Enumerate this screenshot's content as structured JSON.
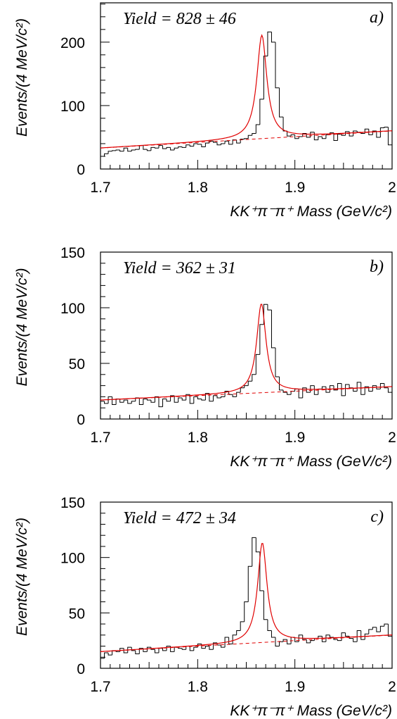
{
  "chart_data": [
    {
      "type": "histogram",
      "panel_label": "a)",
      "annotation": "Yield = 828 ± 46",
      "xlabel": "KK⁺π⁻π⁺ Mass  (GeV/c²)",
      "ylabel": "Events/(4 MeV/c²)",
      "xlim": [
        1.7,
        2.0
      ],
      "ylim": [
        0,
        262
      ],
      "xticks": [
        "1.7",
        "1.8",
        "1.9",
        "2"
      ],
      "yticks": [
        "0",
        "100",
        "200"
      ],
      "ytick_values": [
        0,
        100,
        200
      ],
      "bin_width": 0.004,
      "x_start": 1.7,
      "values": [
        20,
        24,
        28,
        29,
        30,
        28,
        33,
        28,
        30,
        31,
        37,
        31,
        29,
        34,
        33,
        37,
        32,
        34,
        30,
        33,
        35,
        34,
        38,
        36,
        40,
        39,
        35,
        41,
        44,
        42,
        38,
        40,
        44,
        39,
        46,
        41,
        47,
        48,
        53,
        56,
        70,
        110,
        178,
        216,
        200,
        128,
        82,
        60,
        52,
        54,
        48,
        51,
        56,
        50,
        58,
        46,
        51,
        48,
        54,
        57,
        45,
        55,
        53,
        59,
        52,
        60,
        58,
        56,
        63,
        54,
        60,
        50,
        65,
        66,
        38
      ],
      "fit": {
        "peak_mean": 1.866,
        "peak_amplitude": 163,
        "peak_width": 0.0062,
        "background": [
          33,
          60
        ]
      }
    },
    {
      "type": "histogram",
      "panel_label": "b)",
      "annotation": "Yield = 362 ± 31",
      "xlabel": "KK⁺π⁻π⁺ Mass  (GeV/c²)",
      "ylabel": "Events/(4 MeV/c²)",
      "xlim": [
        1.7,
        2.0
      ],
      "ylim": [
        0,
        150
      ],
      "xticks": [
        "1.7",
        "1.8",
        "1.9",
        "2"
      ],
      "yticks": [
        "0",
        "50",
        "100",
        "150"
      ],
      "ytick_values": [
        0,
        50,
        100,
        150
      ],
      "bin_width": 0.004,
      "x_start": 1.7,
      "values": [
        16,
        14,
        20,
        13,
        18,
        15,
        17,
        14,
        16,
        19,
        13,
        18,
        17,
        15,
        20,
        11,
        18,
        16,
        21,
        15,
        19,
        17,
        22,
        14,
        20,
        18,
        17,
        23,
        16,
        21,
        19,
        20,
        25,
        22,
        20,
        24,
        28,
        30,
        34,
        40,
        58,
        85,
        103,
        98,
        64,
        38,
        26,
        24,
        22,
        25,
        27,
        19,
        28,
        24,
        30,
        22,
        27,
        29,
        24,
        30,
        26,
        32,
        21,
        31,
        28,
        25,
        33,
        22,
        29,
        25,
        30,
        27,
        32,
        28,
        24
      ],
      "fit": {
        "peak_mean": 1.8655,
        "peak_amplitude": 80,
        "peak_width": 0.0058,
        "background": [
          17,
          29
        ]
      }
    },
    {
      "type": "histogram",
      "panel_label": "c)",
      "annotation": "Yield = 472 ± 34",
      "xlabel": "KK⁺π⁻π⁺ Mass  (GeV/c²)",
      "ylabel": "Events/(4 MeV/c²)",
      "xlim": [
        1.7,
        2.0
      ],
      "ylim": [
        0,
        150
      ],
      "xticks": [
        "1.7",
        "1.8",
        "1.9",
        "2"
      ],
      "yticks": [
        "0",
        "50",
        "100",
        "150"
      ],
      "ytick_values": [
        0,
        50,
        100,
        150
      ],
      "bin_width": 0.004,
      "x_start": 1.7,
      "values": [
        9,
        14,
        12,
        16,
        15,
        18,
        14,
        19,
        16,
        13,
        18,
        15,
        19,
        17,
        14,
        18,
        16,
        20,
        15,
        19,
        18,
        17,
        20,
        16,
        19,
        22,
        18,
        20,
        17,
        23,
        21,
        19,
        28,
        22,
        30,
        34,
        42,
        60,
        92,
        118,
        105,
        70,
        44,
        34,
        28,
        20,
        24,
        26,
        22,
        28,
        24,
        30,
        26,
        23,
        25,
        27,
        29,
        24,
        30,
        28,
        26,
        25,
        32,
        29,
        27,
        24,
        34,
        26,
        31,
        35,
        37,
        33,
        38,
        40,
        29
      ],
      "fit": {
        "peak_mean": 1.8665,
        "peak_amplitude": 90,
        "peak_width": 0.0058,
        "background": [
          15,
          30
        ]
      }
    }
  ]
}
